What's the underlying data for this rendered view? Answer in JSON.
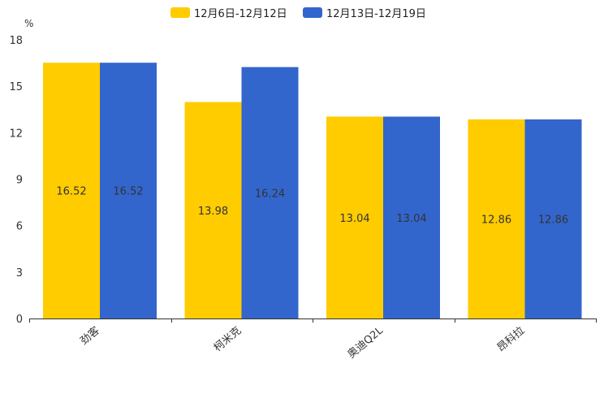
{
  "chart_data": {
    "type": "bar",
    "title": "",
    "xlabel": "",
    "ylabel": "%",
    "ylim": [
      0,
      18
    ],
    "yticks": [
      0,
      3,
      6,
      9,
      12,
      15,
      18
    ],
    "grid": false,
    "legend_position": "top-center",
    "categories": [
      "劲客",
      "柯米克",
      "奥迪Q2L",
      "昂科拉"
    ],
    "series": [
      {
        "name": "12月6日-12月12日",
        "color": "#FFCC00",
        "values": [
          16.52,
          13.98,
          13.04,
          12.86
        ],
        "labels": [
          "16.52",
          "13.98",
          "13.04",
          "12.86"
        ]
      },
      {
        "name": "12月13日-12月19日",
        "color": "#3366CC",
        "values": [
          16.52,
          16.24,
          13.04,
          12.86
        ],
        "labels": [
          "16.52",
          "16.24",
          "13.04",
          "12.86"
        ]
      }
    ]
  }
}
